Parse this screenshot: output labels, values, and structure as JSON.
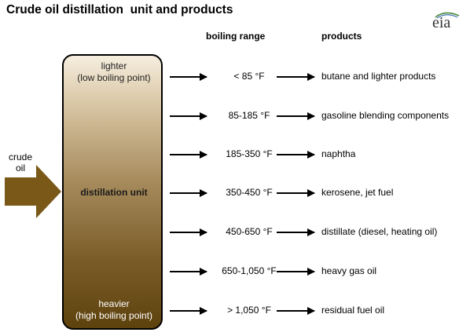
{
  "title": "Crude oil distillation  unit and products",
  "logo": "eia",
  "headers": {
    "boiling_range": "boiling range",
    "products": "products"
  },
  "column": {
    "top_line1": "lighter",
    "top_line2": "(low boiling point)",
    "middle": "distillation unit",
    "bottom_line1": "heavier",
    "bottom_line2": "(high boiling point)"
  },
  "input": {
    "line1": "crude",
    "line2": "oil"
  },
  "rows": [
    {
      "range": "< 85 °F",
      "product": "butane and lighter products"
    },
    {
      "range": "85-185 °F",
      "product": "gasoline blending components"
    },
    {
      "range": "185-350 °F",
      "product": "naphtha"
    },
    {
      "range": "350-450 °F",
      "product": "kerosene, jet fuel"
    },
    {
      "range": "450-650 °F",
      "product": "distillate (diesel, heating oil)"
    },
    {
      "range": "650-1,050 °F",
      "product": "heavy gas oil"
    },
    {
      "range": "> 1,050 °F",
      "product": "residual fuel oil"
    }
  ],
  "colors": {
    "input_arrow": "#7a5818",
    "column_top": "#f6eedf",
    "column_bottom": "#5e420e"
  }
}
